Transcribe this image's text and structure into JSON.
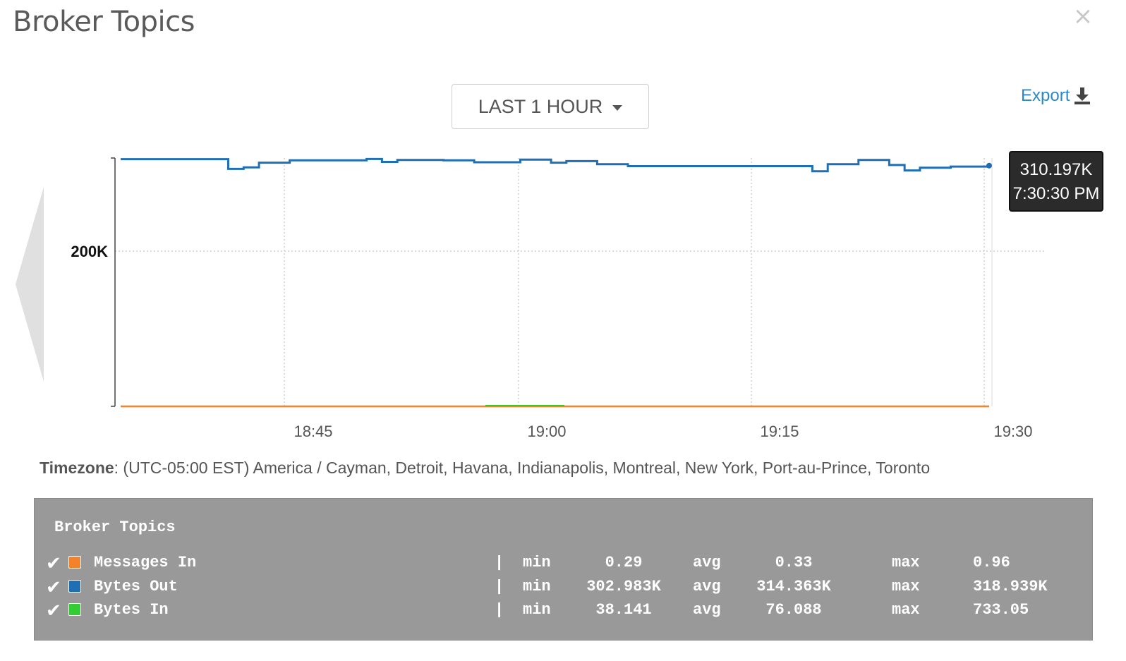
{
  "header": {
    "title": "Broker Topics",
    "close_icon": "close-icon"
  },
  "toolbar": {
    "range_label": "LAST 1 HOUR",
    "export_label": "Export"
  },
  "chart_data": {
    "type": "line",
    "y_tick_labels": [
      "200K"
    ],
    "x_tick_labels": [
      "18:45",
      "19:00",
      "19:15",
      "19:30"
    ],
    "ylim": [
      0,
      320000
    ],
    "grid": true,
    "series": [
      {
        "name": "Bytes Out",
        "color": "#1f6fb5",
        "points": [
          [
            "18:34",
            318500
          ],
          [
            "18:40",
            318500
          ],
          [
            "18:41",
            306000
          ],
          [
            "18:42",
            308000
          ],
          [
            "18:43",
            314000
          ],
          [
            "18:45",
            317000
          ],
          [
            "18:50",
            318800
          ],
          [
            "18:51",
            315000
          ],
          [
            "18:52",
            317500
          ],
          [
            "18:55",
            317000
          ],
          [
            "18:57",
            314500
          ],
          [
            "19:00",
            318000
          ],
          [
            "19:02",
            314000
          ],
          [
            "19:03",
            316000
          ],
          [
            "19:05",
            312000
          ],
          [
            "19:07",
            309500
          ],
          [
            "19:10",
            309500
          ],
          [
            "19:15",
            309500
          ],
          [
            "19:18",
            309500
          ],
          [
            "19:19",
            303000
          ],
          [
            "19:20",
            312000
          ],
          [
            "19:22",
            317500
          ],
          [
            "19:24",
            311000
          ],
          [
            "19:25",
            304000
          ],
          [
            "19:26",
            307500
          ],
          [
            "19:28",
            309000
          ],
          [
            "19:30:30",
            310197
          ]
        ]
      },
      {
        "name": "Messages In",
        "color": "#f4822a",
        "points": [
          [
            "18:34",
            0.33
          ],
          [
            "19:30:30",
            0.33
          ]
        ]
      },
      {
        "name": "Bytes In",
        "color": "#33cc33",
        "points": [
          [
            "18:34",
            76
          ],
          [
            "19:30:30",
            76
          ]
        ]
      }
    ]
  },
  "tooltip": {
    "value": "310.197K",
    "time": "7:30:30 PM"
  },
  "timezone": {
    "label": "Timezone",
    "value": ": (UTC-05:00 EST) America / Cayman, Detroit, Havana, Indianapolis, Montreal, New York, Port-au-Prince, Toronto"
  },
  "legend": {
    "title": "Broker Topics",
    "rows": [
      {
        "name": "Messages In",
        "color": "#f4822a",
        "min_label": "min",
        "min": "0.29",
        "avg_label": "avg",
        "avg": "0.33",
        "max_label": "max",
        "max": "0.96"
      },
      {
        "name": "Bytes Out",
        "color": "#1f6fb5",
        "min_label": "min",
        "min": "302.983K",
        "avg_label": "avg",
        "avg": "314.363K",
        "max_label": "max",
        "max": "318.939K"
      },
      {
        "name": "Bytes In",
        "color": "#33cc33",
        "min_label": "min",
        "min": "38.141",
        "avg_label": "avg",
        "avg": "76.088",
        "max_label": "max",
        "max": "733.05"
      }
    ]
  }
}
